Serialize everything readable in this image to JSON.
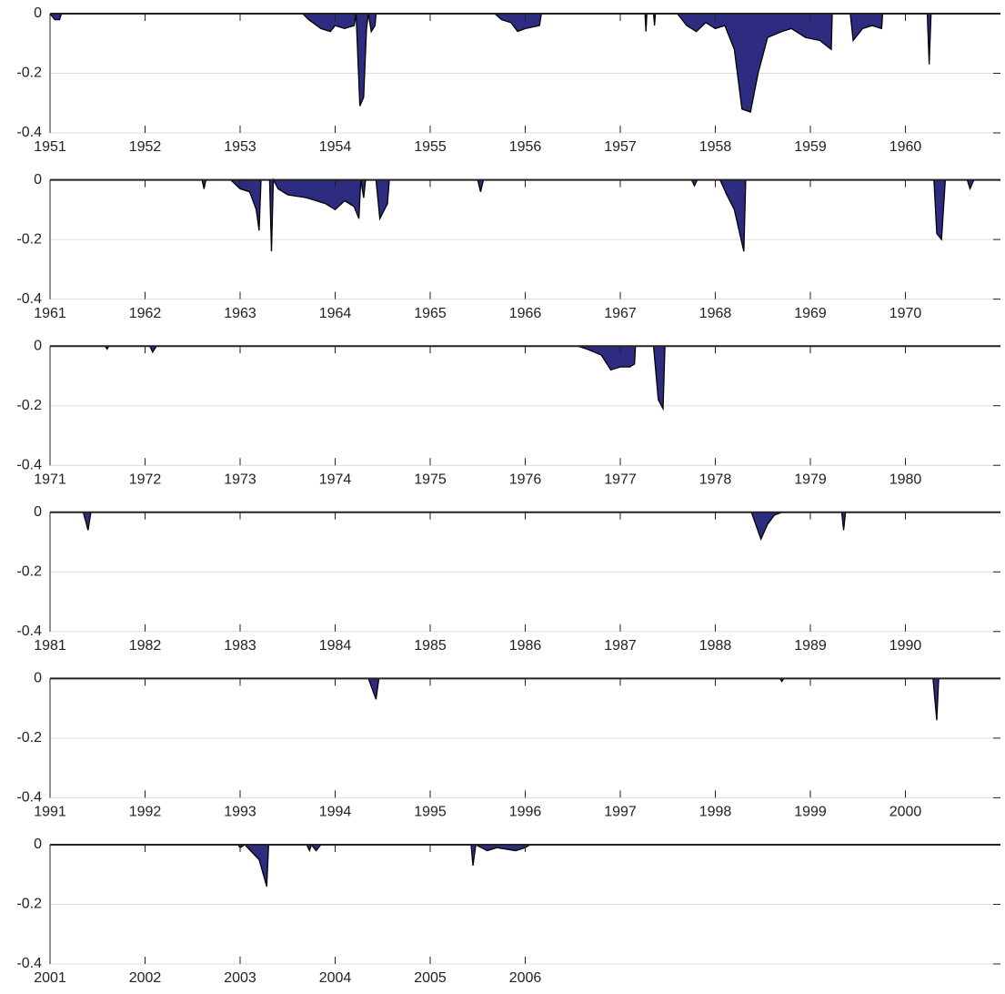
{
  "chart_data": [
    {
      "type": "area",
      "color": "#2e2c80",
      "grid": true,
      "xlim": [
        1951,
        1961
      ],
      "ylim": [
        -0.4,
        0
      ],
      "xticks": [
        1951,
        1952,
        1953,
        1954,
        1955,
        1956,
        1957,
        1958,
        1959,
        1960
      ],
      "yticks": [
        -0.4,
        -0.2,
        0
      ],
      "x": [
        1951,
        1951.05,
        1951.1,
        1951.12,
        1953.66,
        1953.72,
        1953.85,
        1953.95,
        1954.0,
        1954.1,
        1954.2,
        1954.22,
        1954.26,
        1954.3,
        1954.33,
        1954.35,
        1954.38,
        1954.42,
        1954.43,
        1955.68,
        1955.75,
        1955.85,
        1955.92,
        1956.0,
        1956.15,
        1956.17,
        1957.26,
        1957.27,
        1957.28,
        1957.35,
        1957.36,
        1957.37,
        1957.6,
        1957.7,
        1957.8,
        1957.9,
        1958.0,
        1958.1,
        1958.2,
        1958.28,
        1958.37,
        1958.45,
        1958.55,
        1958.7,
        1958.8,
        1958.95,
        1959.1,
        1959.22,
        1959.23,
        1959.42,
        1959.45,
        1959.55,
        1959.65,
        1959.75,
        1959.76,
        1960.23,
        1960.25,
        1960.27,
        1961
      ],
      "values": [
        0,
        -0.02,
        -0.02,
        0,
        0,
        -0.02,
        -0.05,
        -0.06,
        -0.04,
        -0.05,
        -0.04,
        0,
        -0.31,
        -0.28,
        -0.05,
        0,
        -0.06,
        -0.04,
        0,
        0,
        -0.02,
        -0.03,
        -0.06,
        -0.05,
        -0.04,
        0,
        0,
        -0.06,
        0,
        0,
        -0.04,
        0,
        0,
        -0.04,
        -0.06,
        -0.03,
        -0.05,
        -0.04,
        -0.12,
        -0.32,
        -0.33,
        -0.2,
        -0.08,
        -0.06,
        -0.05,
        -0.08,
        -0.09,
        -0.12,
        0,
        0,
        -0.09,
        -0.05,
        -0.04,
        -0.05,
        0,
        0,
        -0.17,
        0,
        0
      ]
    },
    {
      "type": "area",
      "color": "#2e2c80",
      "grid": true,
      "xlim": [
        1961,
        1971
      ],
      "ylim": [
        -0.4,
        0
      ],
      "xticks": [
        1961,
        1962,
        1963,
        1964,
        1965,
        1966,
        1967,
        1968,
        1969,
        1970
      ],
      "yticks": [
        -0.4,
        -0.2,
        0
      ],
      "x": [
        1961,
        1962.6,
        1962.62,
        1962.64,
        1962.9,
        1963.0,
        1963.1,
        1963.17,
        1963.2,
        1963.22,
        1963.31,
        1963.33,
        1963.35,
        1963.4,
        1963.5,
        1963.7,
        1963.9,
        1964.0,
        1964.1,
        1964.2,
        1964.25,
        1964.27,
        1964.3,
        1964.32,
        1964.43,
        1964.47,
        1964.55,
        1964.57,
        1965.5,
        1965.53,
        1965.56,
        1967.75,
        1967.78,
        1967.81,
        1968.05,
        1968.12,
        1968.2,
        1968.3,
        1968.32,
        1970.3,
        1970.33,
        1970.38,
        1970.42,
        1970.65,
        1970.68,
        1970.72,
        1971
      ],
      "values": [
        0,
        0,
        -0.03,
        0,
        0,
        -0.03,
        -0.04,
        -0.1,
        -0.17,
        0,
        0,
        -0.24,
        0,
        -0.03,
        -0.05,
        -0.06,
        -0.08,
        -0.1,
        -0.07,
        -0.09,
        -0.13,
        0,
        -0.06,
        0,
        0,
        -0.13,
        -0.08,
        0,
        0,
        -0.04,
        0,
        0,
        -0.02,
        0,
        0,
        -0.05,
        -0.1,
        -0.24,
        0,
        0,
        -0.18,
        -0.2,
        0,
        0,
        -0.03,
        0,
        0
      ]
    },
    {
      "type": "area",
      "color": "#2e2c80",
      "grid": true,
      "xlim": [
        1971,
        1981
      ],
      "ylim": [
        -0.4,
        0
      ],
      "xticks": [
        1971,
        1972,
        1973,
        1974,
        1975,
        1976,
        1977,
        1978,
        1979,
        1980
      ],
      "yticks": [
        -0.4,
        -0.2,
        0
      ],
      "x": [
        1971,
        1971.58,
        1971.6,
        1971.62,
        1972.05,
        1972.08,
        1972.12,
        1976.55,
        1976.65,
        1976.8,
        1976.9,
        1977.0,
        1977.1,
        1977.15,
        1977.16,
        1977.35,
        1977.4,
        1977.45,
        1977.47,
        1981
      ],
      "values": [
        0,
        0,
        -0.01,
        0,
        0,
        -0.02,
        0,
        0,
        -0.01,
        -0.03,
        -0.08,
        -0.07,
        -0.07,
        -0.06,
        0,
        0,
        -0.18,
        -0.21,
        0,
        0
      ]
    },
    {
      "type": "area",
      "color": "#2e2c80",
      "grid": true,
      "xlim": [
        1981,
        1991
      ],
      "ylim": [
        -0.4,
        0
      ],
      "xticks": [
        1981,
        1982,
        1983,
        1984,
        1985,
        1986,
        1987,
        1988,
        1989,
        1990
      ],
      "yticks": [
        -0.4,
        -0.2,
        0
      ],
      "x": [
        1981,
        1981.35,
        1981.4,
        1981.43,
        1988.38,
        1988.48,
        1988.55,
        1988.62,
        1988.7,
        1989.33,
        1989.35,
        1989.37,
        1991
      ],
      "values": [
        0,
        0,
        -0.06,
        0,
        0,
        -0.09,
        -0.04,
        -0.01,
        0,
        0,
        -0.06,
        0,
        0
      ]
    },
    {
      "type": "area",
      "color": "#2e2c80",
      "grid": true,
      "xlim": [
        1991,
        2001
      ],
      "ylim": [
        -0.4,
        0
      ],
      "xticks": [
        1991,
        1992,
        1993,
        1994,
        1995,
        1996,
        1997,
        1998,
        1999,
        2000
      ],
      "yticks": [
        -0.4,
        -0.2,
        0
      ],
      "x": [
        1991,
        1994.35,
        1994.43,
        1994.46,
        1998.68,
        1998.7,
        1998.72,
        2000.29,
        2000.33,
        2000.35,
        2001
      ],
      "values": [
        0,
        0,
        -0.07,
        0,
        0,
        -0.01,
        0,
        0,
        -0.14,
        0,
        0
      ]
    },
    {
      "type": "area",
      "color": "#2e2c80",
      "grid": true,
      "xlim": [
        2001,
        2011
      ],
      "ylim": [
        -0.4,
        0
      ],
      "xticks": [
        2001,
        2002,
        2003,
        2004,
        2005,
        2006
      ],
      "yticks": [
        -0.4,
        -0.2,
        0
      ],
      "x": [
        2001,
        2002.98,
        2003.0,
        2003.05,
        2003.2,
        2003.28,
        2003.3,
        2003.7,
        2003.73,
        2003.75,
        2003.8,
        2003.85,
        2005.43,
        2005.45,
        2005.48,
        2005.6,
        2005.7,
        2005.9,
        2006.0,
        2006.05,
        2006.5
      ],
      "values": [
        0,
        0,
        -0.01,
        0,
        -0.05,
        -0.14,
        0,
        0,
        -0.02,
        0,
        -0.02,
        0,
        0,
        -0.07,
        0,
        -0.02,
        -0.01,
        -0.02,
        -0.01,
        0,
        0
      ]
    }
  ]
}
